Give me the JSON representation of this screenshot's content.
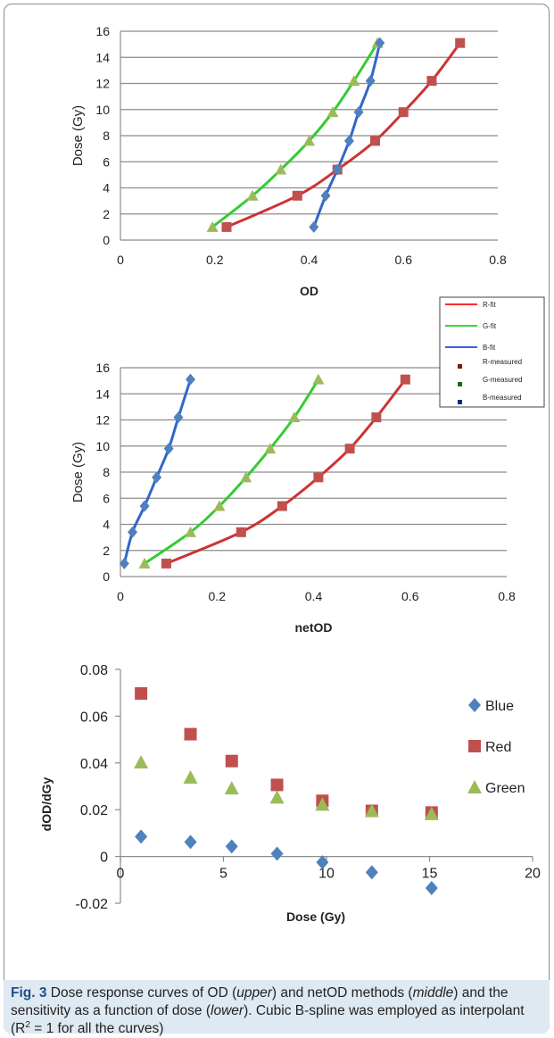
{
  "colors": {
    "red": "#cc3333",
    "green": "#33cc33",
    "blue": "#3366cc",
    "red_marker": "#c0504d",
    "green_marker": "#9bbb59",
    "blue_marker": "#4f81bd"
  },
  "upper": {
    "chart_data": {
      "type": "line",
      "xlabel": "OD",
      "ylabel": "Dose (Gy)",
      "xlim": [
        0,
        0.8
      ],
      "ylim": [
        0,
        16
      ],
      "x_ticks": [
        "0",
        "0.2",
        "0.4",
        "0.6",
        "0.8"
      ],
      "y_ticks": [
        "0",
        "2",
        "4",
        "6",
        "8",
        "10",
        "12",
        "14",
        "16"
      ],
      "grid": true,
      "series": [
        {
          "name": "R",
          "color": "red",
          "marker": "square",
          "x": [
            0.225,
            0.375,
            0.46,
            0.54,
            0.6,
            0.66,
            0.72
          ],
          "y": [
            1,
            3.4,
            5.4,
            7.6,
            9.8,
            12.2,
            15.1
          ]
        },
        {
          "name": "G",
          "color": "green",
          "marker": "triangle",
          "x": [
            0.195,
            0.28,
            0.34,
            0.4,
            0.45,
            0.495,
            0.545
          ],
          "y": [
            1,
            3.4,
            5.4,
            7.6,
            9.8,
            12.2,
            15.1
          ]
        },
        {
          "name": "B",
          "color": "blue",
          "marker": "diamond",
          "x": [
            0.41,
            0.435,
            0.46,
            0.485,
            0.505,
            0.53,
            0.55
          ],
          "y": [
            1,
            3.4,
            5.4,
            7.6,
            9.8,
            12.2,
            15.1
          ]
        }
      ]
    }
  },
  "middle": {
    "legend": {
      "entries": [
        "R-fit",
        "G-fit",
        "B-fit",
        "R-measured",
        "G-measured",
        "B-measured"
      ]
    },
    "chart_data": {
      "type": "line",
      "xlabel": "netOD",
      "ylabel": "Dose (Gy)",
      "xlim": [
        0,
        0.8
      ],
      "ylim": [
        0,
        16
      ],
      "x_ticks": [
        "0",
        "0.2",
        "0.4",
        "0.6",
        "0.8"
      ],
      "y_ticks": [
        "0",
        "2",
        "4",
        "6",
        "8",
        "10",
        "12",
        "14",
        "16"
      ],
      "grid": true,
      "series": [
        {
          "name": "R",
          "color": "red",
          "marker": "square",
          "x": [
            0.095,
            0.25,
            0.335,
            0.41,
            0.475,
            0.53,
            0.59
          ],
          "y": [
            1,
            3.4,
            5.4,
            7.6,
            9.8,
            12.2,
            15.1
          ]
        },
        {
          "name": "G",
          "color": "green",
          "marker": "triangle",
          "x": [
            0.05,
            0.145,
            0.205,
            0.26,
            0.31,
            0.36,
            0.41
          ],
          "y": [
            1,
            3.4,
            5.4,
            7.6,
            9.8,
            12.2,
            15.1
          ]
        },
        {
          "name": "B",
          "color": "blue",
          "marker": "diamond",
          "x": [
            0.008,
            0.025,
            0.05,
            0.075,
            0.1,
            0.12,
            0.145
          ],
          "y": [
            1,
            3.4,
            5.4,
            7.6,
            9.8,
            12.2,
            15.1
          ]
        }
      ]
    }
  },
  "lower": {
    "chart_data": {
      "type": "scatter",
      "xlabel": "Dose (Gy)",
      "ylabel": "dOD/dGy",
      "xlim": [
        0,
        20
      ],
      "ylim": [
        -0.02,
        0.08
      ],
      "x_ticks": [
        "0",
        "5",
        "10",
        "15",
        "20"
      ],
      "y_ticks": [
        "-0.02",
        "0",
        "0.02",
        "0.04",
        "0.06",
        "0.08"
      ],
      "grid": false,
      "legend_placement": "right",
      "series": [
        {
          "name": "Blue",
          "color": "blue_marker",
          "marker": "diamond",
          "x": [
            1,
            3.4,
            5.4,
            7.6,
            9.8,
            12.2,
            15.1
          ],
          "y": [
            0.0085,
            0.0062,
            0.0043,
            0.0012,
            -0.0025,
            -0.0068,
            -0.0135
          ]
        },
        {
          "name": "Red",
          "color": "red_marker",
          "marker": "square",
          "x": [
            1,
            3.4,
            5.4,
            7.6,
            9.8,
            12.2,
            15.1
          ],
          "y": [
            0.0697,
            0.0523,
            0.0408,
            0.0306,
            0.0238,
            0.0195,
            0.0188
          ]
        },
        {
          "name": "Green",
          "color": "green_marker",
          "marker": "triangle",
          "x": [
            1,
            3.4,
            5.4,
            7.6,
            9.8,
            12.2,
            15.1
          ],
          "y": [
            0.0403,
            0.0338,
            0.0292,
            0.0253,
            0.0222,
            0.0195,
            0.0182
          ]
        }
      ]
    }
  },
  "caption": {
    "label": "Fig. 3",
    "t1": " Dose response curves of OD (",
    "i1": "upper",
    "t2": ") and netOD methods (",
    "i2": "middle",
    "t3": ") and the sensitivity as a function of dose (",
    "i3": "lower",
    "t4": "). Cubic B-spline was employed as interpolant (R",
    "sup": "2",
    "t5": " = 1 for all the curves)"
  }
}
